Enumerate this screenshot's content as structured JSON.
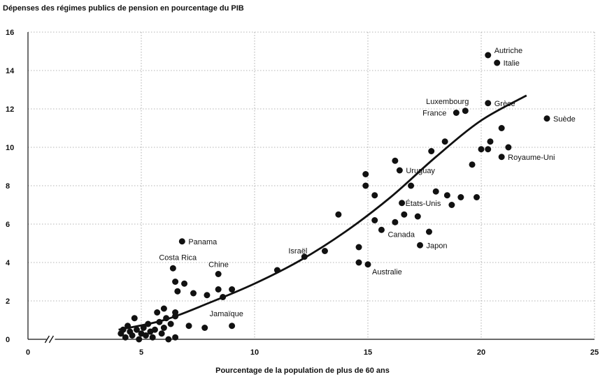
{
  "chart_data": {
    "type": "scatter",
    "title": "Dépenses des régimes publics de pension en pourcentage du PIB",
    "xlabel": "Pourcentage de la population de plus de 60 ans",
    "ylabel": "",
    "xlim": [
      0,
      25
    ],
    "ylim": [
      0,
      16
    ],
    "x_axis_break": true,
    "xticks": [
      0,
      5,
      10,
      15,
      20,
      25
    ],
    "yticks": [
      0,
      2,
      4,
      6,
      8,
      10,
      12,
      14,
      16
    ],
    "grid": true,
    "labeled_points": [
      {
        "label": "Autriche",
        "x": 20.3,
        "y": 14.8
      },
      {
        "label": "Italie",
        "x": 20.7,
        "y": 14.4
      },
      {
        "label": "Luxembourg",
        "x": 19.3,
        "y": 11.9
      },
      {
        "label": "France",
        "x": 18.9,
        "y": 11.8
      },
      {
        "label": "Grèce",
        "x": 20.3,
        "y": 12.3
      },
      {
        "label": "Suède",
        "x": 22.9,
        "y": 11.5
      },
      {
        "label": "Royaume-Uni",
        "x": 20.9,
        "y": 9.5
      },
      {
        "label": "Uruguay",
        "x": 16.4,
        "y": 8.8
      },
      {
        "label": "États-Unis",
        "x": 16.5,
        "y": 7.1
      },
      {
        "label": "Canada",
        "x": 15.6,
        "y": 5.7
      },
      {
        "label": "Japon",
        "x": 17.3,
        "y": 4.9
      },
      {
        "label": "Australie",
        "x": 15.0,
        "y": 3.9
      },
      {
        "label": "Israël",
        "x": 12.2,
        "y": 4.3
      },
      {
        "label": "Panama",
        "x": 6.8,
        "y": 5.1
      },
      {
        "label": "Costa Rica",
        "x": 6.4,
        "y": 3.7
      },
      {
        "label": "Chine",
        "x": 8.4,
        "y": 3.4
      },
      {
        "label": "Jamaïque",
        "x": 9.0,
        "y": 0.7
      }
    ],
    "points": [
      [
        4.1,
        0.3
      ],
      [
        4.2,
        0.5
      ],
      [
        4.3,
        0.1
      ],
      [
        4.4,
        0.7
      ],
      [
        4.5,
        0.4
      ],
      [
        4.6,
        0.2
      ],
      [
        4.7,
        1.1
      ],
      [
        4.8,
        0.5
      ],
      [
        4.9,
        0.0
      ],
      [
        5.0,
        0.3
      ],
      [
        5.1,
        0.6
      ],
      [
        5.2,
        0.2
      ],
      [
        5.3,
        0.8
      ],
      [
        5.4,
        0.4
      ],
      [
        5.5,
        0.1
      ],
      [
        5.6,
        0.5
      ],
      [
        5.7,
        1.4
      ],
      [
        5.8,
        0.9
      ],
      [
        5.9,
        0.3
      ],
      [
        6.0,
        1.6
      ],
      [
        6.0,
        0.6
      ],
      [
        6.1,
        1.1
      ],
      [
        6.2,
        0.0
      ],
      [
        6.3,
        0.8
      ],
      [
        6.5,
        1.4
      ],
      [
        6.5,
        1.2
      ],
      [
        6.5,
        0.1
      ],
      [
        6.6,
        2.5
      ],
      [
        6.5,
        3.0
      ],
      [
        6.9,
        2.9
      ],
      [
        7.1,
        0.7
      ],
      [
        7.3,
        2.4
      ],
      [
        7.8,
        0.6
      ],
      [
        7.9,
        2.3
      ],
      [
        8.4,
        2.6
      ],
      [
        8.6,
        2.2
      ],
      [
        9.0,
        2.6
      ],
      [
        11.0,
        3.6
      ],
      [
        13.1,
        4.6
      ],
      [
        13.7,
        6.5
      ],
      [
        14.6,
        4.8
      ],
      [
        14.6,
        4.0
      ],
      [
        14.9,
        8.6
      ],
      [
        14.9,
        8.0
      ],
      [
        15.3,
        7.5
      ],
      [
        15.3,
        6.2
      ],
      [
        16.2,
        9.3
      ],
      [
        16.2,
        6.1
      ],
      [
        16.6,
        6.5
      ],
      [
        16.9,
        8.0
      ],
      [
        17.2,
        6.4
      ],
      [
        17.7,
        5.6
      ],
      [
        17.8,
        9.8
      ],
      [
        18.0,
        7.7
      ],
      [
        18.4,
        10.3
      ],
      [
        18.5,
        7.5
      ],
      [
        18.7,
        7.0
      ],
      [
        19.1,
        7.4
      ],
      [
        19.6,
        9.1
      ],
      [
        19.8,
        7.4
      ],
      [
        20.0,
        9.9
      ],
      [
        20.3,
        9.9
      ],
      [
        20.4,
        10.3
      ],
      [
        20.9,
        11.0
      ],
      [
        21.2,
        10.0
      ]
    ],
    "trend_line": [
      [
        4,
        0.5
      ],
      [
        6,
        1.0
      ],
      [
        8,
        1.9
      ],
      [
        10,
        2.9
      ],
      [
        12,
        4.1
      ],
      [
        14,
        5.6
      ],
      [
        16,
        7.4
      ],
      [
        18,
        9.5
      ],
      [
        20,
        11.4
      ],
      [
        22,
        12.7
      ]
    ]
  }
}
